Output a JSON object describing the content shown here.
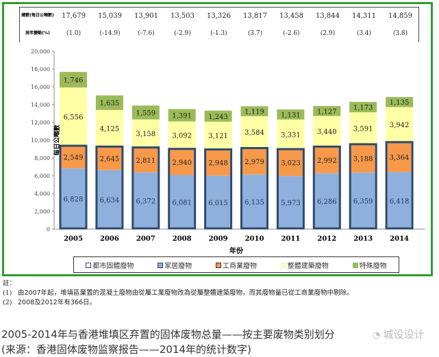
{
  "table": {
    "total_label": "總數(每日公噸數)",
    "change_label": "按年變動(%)",
    "totals": [
      "17,679",
      "15,039",
      "13,901",
      "13,503",
      "13,326",
      "13,817",
      "13,458",
      "13,844",
      "14,311",
      "14,859"
    ],
    "changes": [
      "(1.0)",
      "(-14.9)",
      "(-7.6)",
      "(-2.9)",
      "(-1.3)",
      "(3.7)",
      "(-2.6)",
      "(2.9)",
      "(3.4)",
      "(3.8)"
    ]
  },
  "chart_data": {
    "type": "bar",
    "stacked": true,
    "categories": [
      "2005",
      "2006",
      "2007",
      "2008",
      "2009",
      "2010",
      "2011",
      "2012",
      "2013",
      "2014"
    ],
    "series": [
      {
        "name": "家居廢物",
        "color": "#8fb0dc",
        "values": [
          6828,
          6634,
          6372,
          6081,
          6015,
          6135,
          5973,
          6286,
          6359,
          6418
        ]
      },
      {
        "name": "工商業廢物",
        "color": "#f7994b",
        "values": [
          2549,
          2645,
          2811,
          2940,
          2948,
          2979,
          3023,
          2992,
          3188,
          3364
        ]
      },
      {
        "name": "整體建築廢物",
        "color": "#ffffa6",
        "values": [
          6556,
          4125,
          3158,
          3092,
          3121,
          3584,
          3331,
          3440,
          3591,
          3942
        ]
      },
      {
        "name": "特殊廢物",
        "color": "#9bbb59",
        "values": [
          1746,
          1635,
          1559,
          1391,
          1243,
          1119,
          1131,
          1127,
          1173,
          1135
        ]
      }
    ],
    "outline_series_name": "都市固體廢物",
    "outline_color": "#2f4a6e",
    "xlabel": "年份",
    "ylabel": "每日公噸數",
    "ylim": [
      0,
      20000
    ],
    "yticks": [
      "0",
      "2,000",
      "4,000",
      "6,000",
      "8,000",
      "10,000",
      "12,000",
      "14,000",
      "16,000",
      "18,000",
      "20,000"
    ],
    "legend": [
      "都市固體廢物",
      "家居廢物",
      "工商業廢物",
      "整體建築廢物",
      "特殊廢物"
    ],
    "legend_position": "bottom"
  },
  "notes": {
    "heading": "註：",
    "items": [
      {
        "num": "(1)",
        "text": "由2007年起，堆填區棄置的混凝土廢物由從屬工業廢物改為從屬整體建築廢物，而其廢物量已從工商業廢物中剔除。"
      },
      {
        "num": "(2)",
        "text": "2008及2012年有366日。"
      }
    ]
  },
  "caption": {
    "line1": "2005-2014年与香港堆填区弃置的固体废物总量——按主要废物类别划分",
    "line2": "(来源：香港固体废物监察报告——2014年的统计数字)",
    "watermark": "城设设计"
  }
}
